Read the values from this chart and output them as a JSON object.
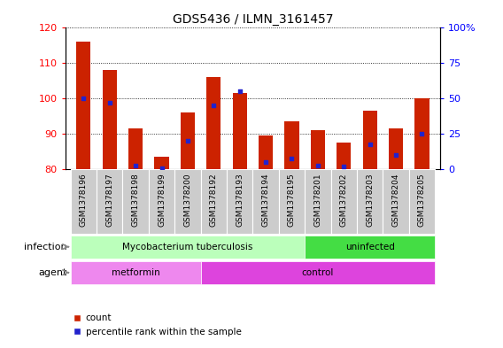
{
  "title": "GDS5436 / ILMN_3161457",
  "samples": [
    "GSM1378196",
    "GSM1378197",
    "GSM1378198",
    "GSM1378199",
    "GSM1378200",
    "GSM1378192",
    "GSM1378193",
    "GSM1378194",
    "GSM1378195",
    "GSM1378201",
    "GSM1378202",
    "GSM1378203",
    "GSM1378204",
    "GSM1378205"
  ],
  "counts": [
    116,
    108,
    91.5,
    83.5,
    96,
    106,
    101.5,
    89.5,
    93.5,
    91,
    87.5,
    96.5,
    91.5,
    100
  ],
  "percentiles": [
    50,
    47,
    3,
    1,
    20,
    45,
    55,
    5,
    8,
    3,
    2,
    18,
    10,
    25
  ],
  "ylim_left": [
    80,
    120
  ],
  "yticks_left": [
    80,
    90,
    100,
    110,
    120
  ],
  "ylim_right": [
    0,
    100
  ],
  "yticks_right": [
    0,
    25,
    50,
    75,
    100
  ],
  "bar_color": "#cc2200",
  "percentile_color": "#2222cc",
  "bar_width": 0.55,
  "infection_groups": [
    {
      "label": "Mycobacterium tuberculosis",
      "start": 0,
      "end": 9,
      "color": "#bbffbb"
    },
    {
      "label": "uninfected",
      "start": 9,
      "end": 14,
      "color": "#44dd44"
    }
  ],
  "agent_groups": [
    {
      "label": "metformin",
      "start": 0,
      "end": 5,
      "color": "#ee88ee"
    },
    {
      "label": "control",
      "start": 5,
      "end": 14,
      "color": "#dd44dd"
    }
  ],
  "infection_label": "infection",
  "agent_label": "agent",
  "legend_count_label": "count",
  "legend_percentile_label": "percentile rank within the sample",
  "background_color": "#ffffff",
  "axis_bg_color": "#ffffff",
  "tick_bg_color": "#cccccc"
}
